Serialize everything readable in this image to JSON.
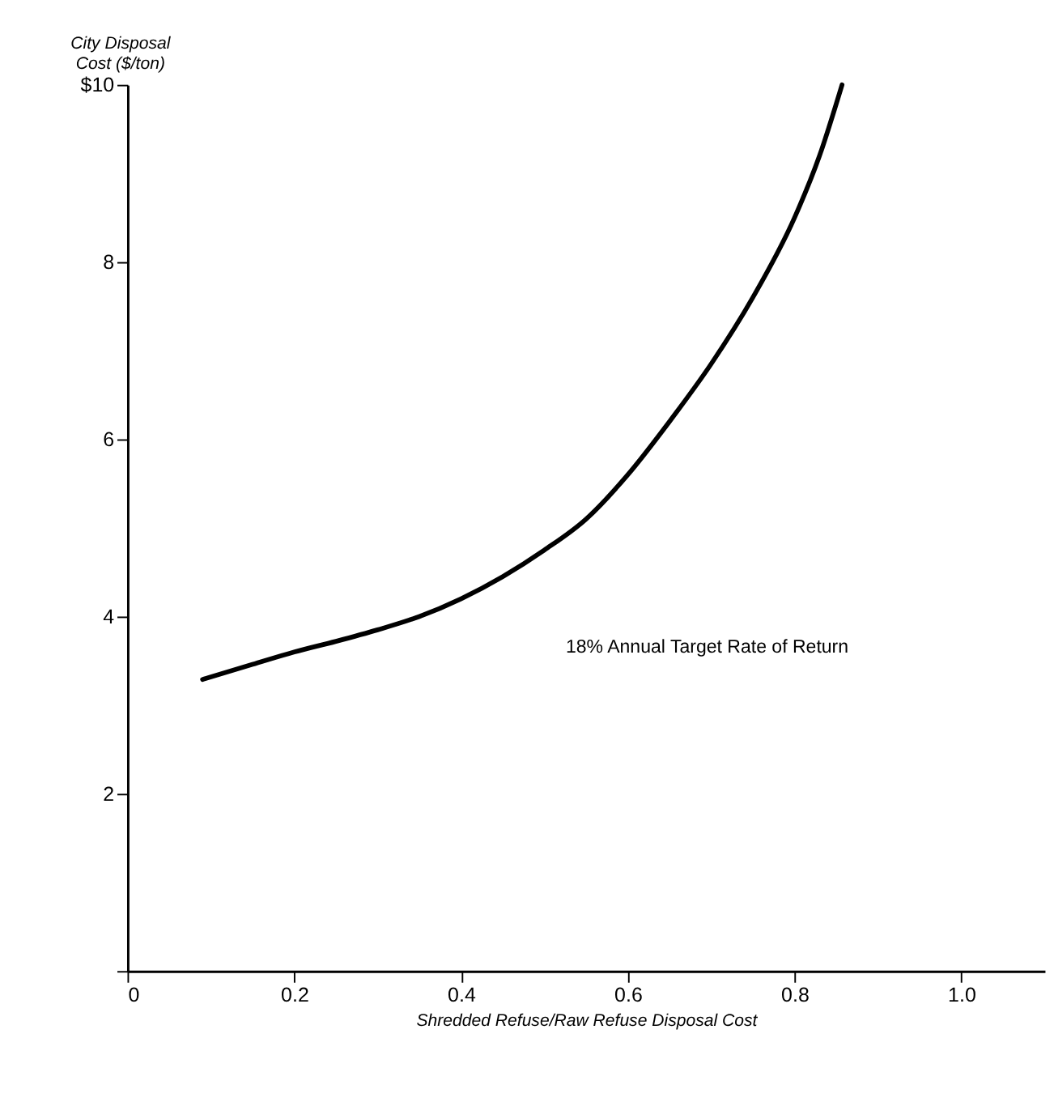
{
  "chart_data": {
    "type": "line",
    "xlabel": "Shredded Refuse/Raw Refuse Disposal Cost",
    "ylabel": "City Disposal Cost ($/ton)",
    "annotations": [
      "18% Annual Target Rate of Return"
    ],
    "series": [
      {
        "color": "#000000",
        "x": [
          0.09,
          0.15,
          0.2,
          0.25,
          0.3,
          0.35,
          0.4,
          0.45,
          0.5,
          0.55,
          0.6,
          0.65,
          0.7,
          0.75,
          0.8,
          0.83,
          0.857
        ],
        "values": [
          3.29,
          3.46,
          3.6,
          3.72,
          3.85,
          4.0,
          4.2,
          4.45,
          4.75,
          5.1,
          5.6,
          6.2,
          6.85,
          7.6,
          8.5,
          9.2,
          10.0
        ]
      }
    ],
    "xlim": [
      0,
      1.1
    ],
    "xticks": [
      0,
      0.2,
      0.4,
      0.6,
      0.8,
      {
        "value": 1,
        "label": "1.0"
      }
    ],
    "ylim": [
      0,
      10
    ],
    "yticks": [
      {
        "value": 0,
        "label": null
      },
      2,
      4,
      6,
      8,
      {
        "value": 10,
        "label": "$10"
      }
    ],
    "grid": false,
    "marker": "none",
    "line_style": "solid"
  }
}
